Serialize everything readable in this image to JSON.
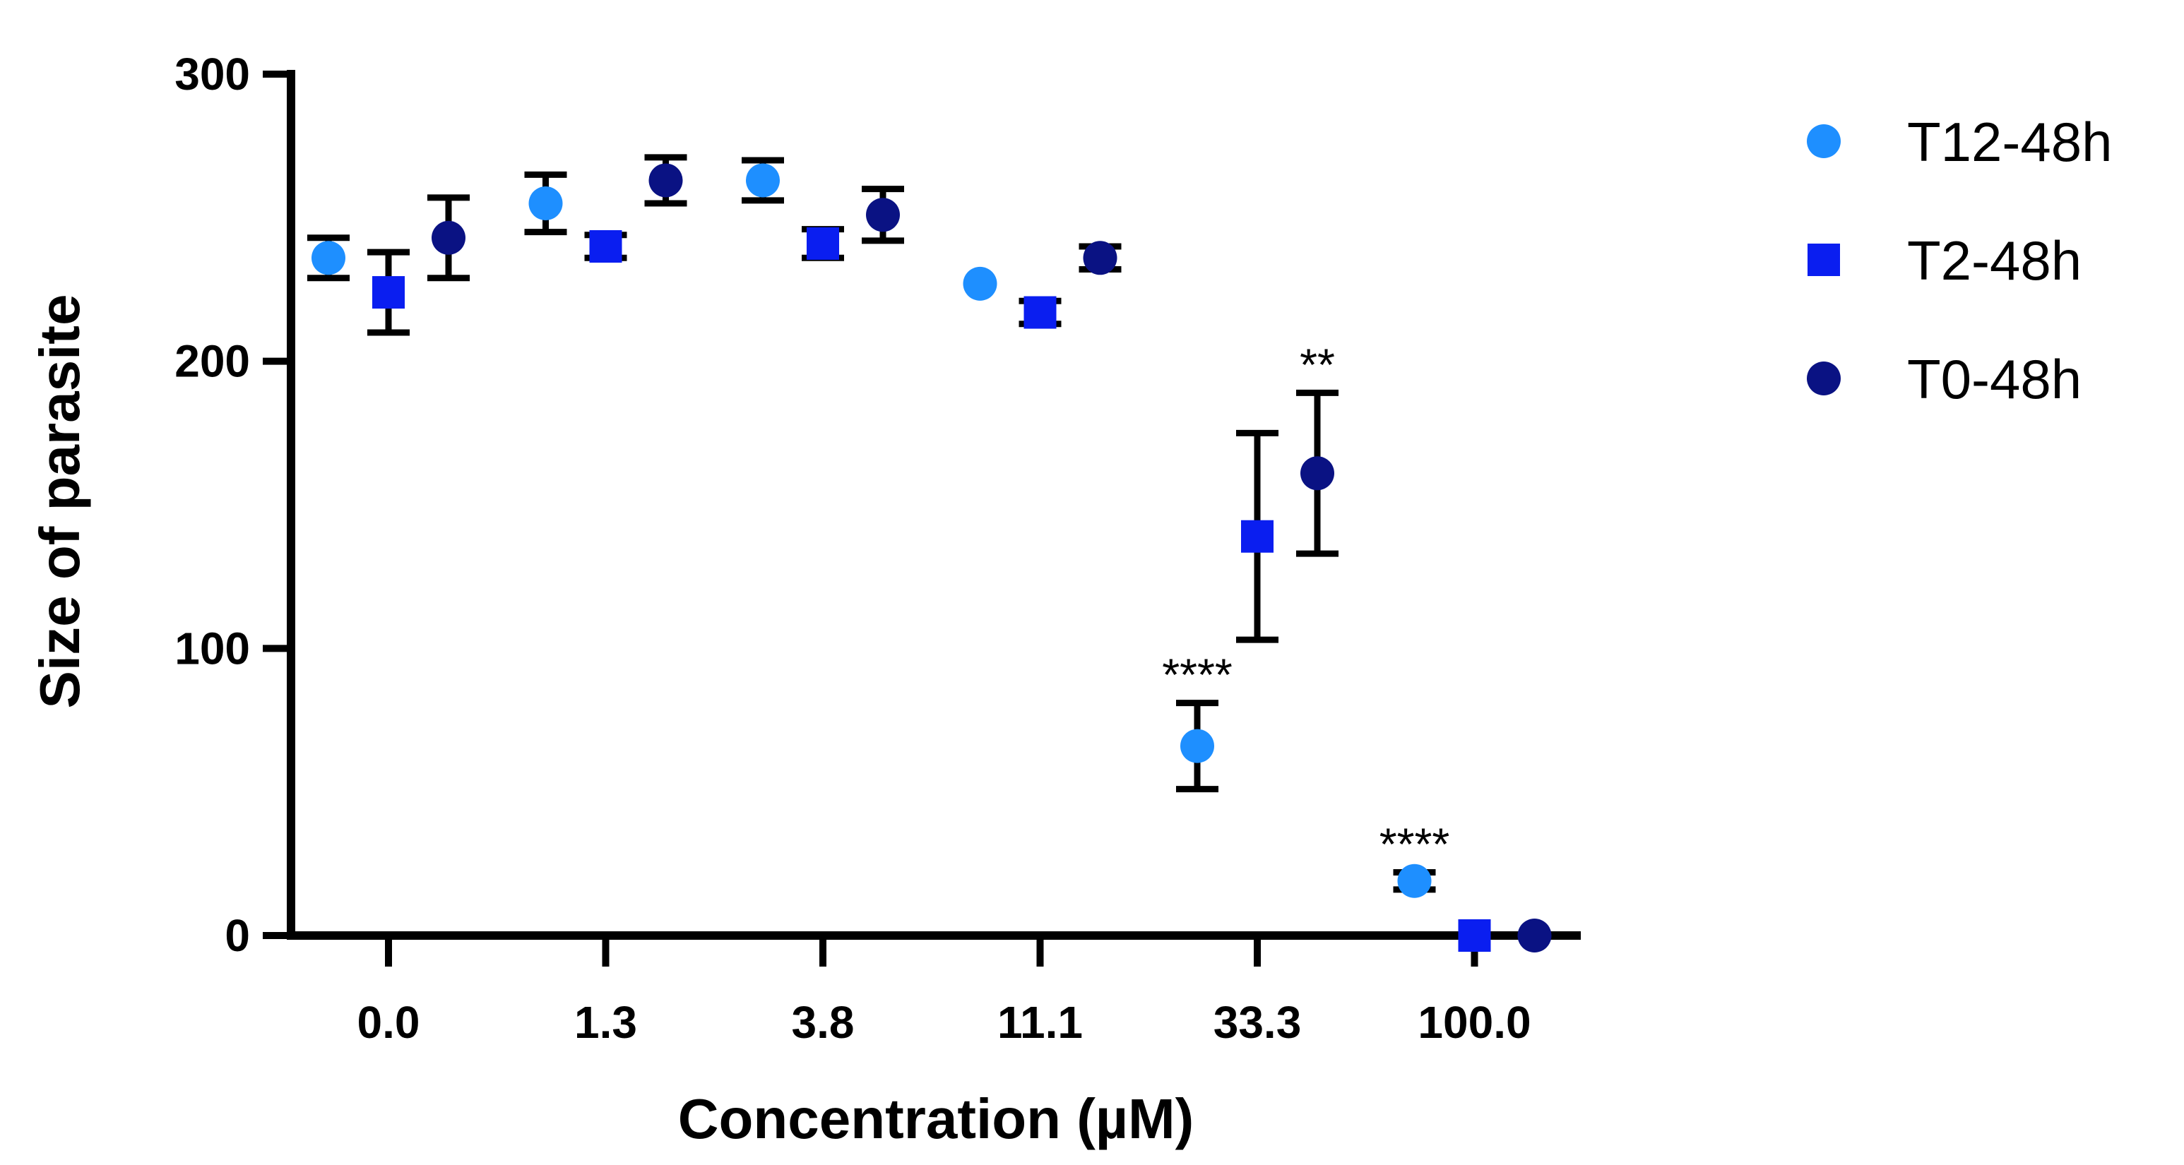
{
  "chart_data": {
    "type": "scatter",
    "title": "",
    "xlabel": "Concentration (µM)",
    "ylabel": "Size of parasite",
    "ylim": [
      0,
      300
    ],
    "yticks": [
      0,
      100,
      200,
      300
    ],
    "categories": [
      "0.0",
      "1.3",
      "3.8",
      "11.1",
      "33.3",
      "100.0"
    ],
    "series": [
      {
        "name": "T12-48h",
        "marker": "circle",
        "color": "#1E8FFF",
        "values": [
          236,
          255,
          263,
          227,
          66,
          19
        ],
        "errors": [
          7,
          10,
          7,
          0,
          15,
          3
        ]
      },
      {
        "name": "T2-48h",
        "marker": "square",
        "color": "#0A1EF0",
        "values": [
          224,
          240,
          241,
          217,
          139,
          0
        ],
        "errors": [
          14,
          4,
          5,
          4,
          36,
          0
        ]
      },
      {
        "name": "T0-48h",
        "marker": "circle",
        "color": "#0A1283",
        "values": [
          243,
          263,
          251,
          236,
          161,
          0
        ],
        "errors": [
          14,
          8,
          9,
          4,
          28,
          0
        ]
      }
    ],
    "annotations": [
      {
        "text": "****",
        "series": 0,
        "category": 4
      },
      {
        "text": "**",
        "series": 2,
        "category": 4
      },
      {
        "text": "****",
        "series": 0,
        "category": 5
      }
    ],
    "legend_position": "right",
    "grid": false
  }
}
